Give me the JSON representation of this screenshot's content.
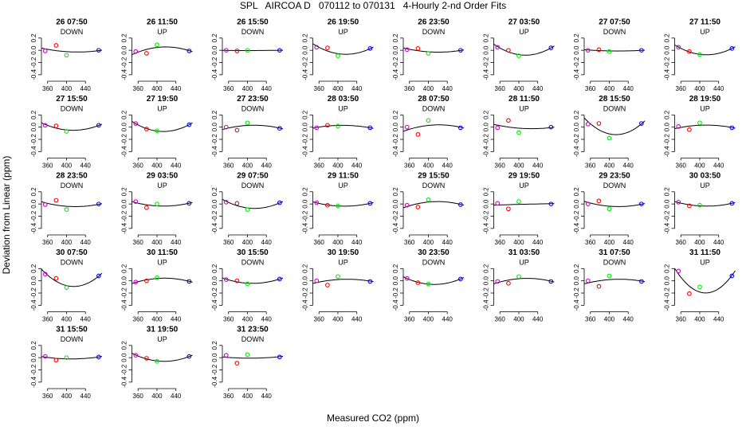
{
  "title": "SPL   AIRCOA D   070112 to 070131   4-Hourly 2-nd Order Fits",
  "xlabel": "Measured CO2 (ppm)",
  "ylabel": "Deviation from Linear (ppm)",
  "colors": {
    "point_low": "#cc00cc",
    "point_mid": "#ff0000",
    "point_ref": "#00ee00",
    "point_high": "#0000ff",
    "curve": "#000000"
  },
  "chart_data": {
    "type": "scatter",
    "layout": "small-multiples grid, 8 columns",
    "x_ticks": [
      360,
      400,
      440
    ],
    "x_tick_labels": [
      "360",
      "400",
      "440"
    ],
    "y_ticks": [
      -0.4,
      -0.2,
      0.0,
      0.2
    ],
    "y_tick_labels": [
      "-0.4",
      "-0.2",
      "0.0",
      "0.2"
    ],
    "xlim": [
      347,
      475
    ],
    "ylim": [
      -0.48,
      0.38
    ],
    "standards_x": [
      355,
      378,
      400,
      468
    ],
    "panels": [
      {
        "title": "26 07:50",
        "direction": "DOWN",
        "y": [
          -0.01,
          0.08,
          -0.08,
          0.0
        ]
      },
      {
        "title": "26 11:50",
        "direction": "UP",
        "y": [
          -0.02,
          -0.05,
          0.09,
          -0.01
        ]
      },
      {
        "title": "26 15:50",
        "direction": "DOWN",
        "y": [
          0.0,
          -0.01,
          0.0,
          0.0
        ]
      },
      {
        "title": "26 19:50",
        "direction": "UP",
        "y": [
          0.05,
          0.04,
          -0.09,
          0.03
        ]
      },
      {
        "title": "26 23:50",
        "direction": "DOWN",
        "y": [
          0.01,
          0.03,
          -0.05,
          0.0
        ]
      },
      {
        "title": "27 03:50",
        "direction": "UP",
        "y": [
          0.05,
          0.0,
          -0.09,
          0.04
        ]
      },
      {
        "title": "27 07:50",
        "direction": "DOWN",
        "y": [
          0.0,
          0.01,
          -0.02,
          0.0
        ]
      },
      {
        "title": "27 11:50",
        "direction": "UP",
        "y": [
          0.05,
          -0.02,
          -0.07,
          0.03
        ]
      },
      {
        "title": "27 15:50",
        "direction": "DOWN",
        "y": [
          0.03,
          0.02,
          -0.07,
          0.03
        ]
      },
      {
        "title": "27 19:50",
        "direction": "UP",
        "y": [
          0.06,
          -0.03,
          -0.06,
          0.04
        ]
      },
      {
        "title": "27 23:50",
        "direction": "DOWN",
        "y": [
          0.0,
          -0.05,
          0.07,
          -0.02
        ]
      },
      {
        "title": "28 03:50",
        "direction": "UP",
        "y": [
          -0.01,
          0.03,
          0.02,
          -0.01
        ]
      },
      {
        "title": "28 07:50",
        "direction": "DOWN",
        "y": [
          0.0,
          -0.12,
          0.11,
          -0.01
        ]
      },
      {
        "title": "28 11:50",
        "direction": "UP",
        "y": [
          -0.01,
          0.11,
          -0.09,
          0.0
        ]
      },
      {
        "title": "28 15:50",
        "direction": "DOWN",
        "y": [
          0.05,
          0.06,
          -0.18,
          0.06
        ]
      },
      {
        "title": "28 19:50",
        "direction": "UP",
        "y": [
          0.01,
          -0.04,
          0.07,
          -0.01
        ]
      },
      {
        "title": "28 23:50",
        "direction": "DOWN",
        "y": [
          -0.01,
          0.06,
          -0.09,
          0.0
        ]
      },
      {
        "title": "29 03:50",
        "direction": "UP",
        "y": [
          0.04,
          -0.06,
          0.0,
          0.01
        ]
      },
      {
        "title": "29 07:50",
        "direction": "DOWN",
        "y": [
          0.03,
          0.01,
          -0.09,
          0.02
        ]
      },
      {
        "title": "29 11:50",
        "direction": "UP",
        "y": [
          0.02,
          -0.02,
          -0.03,
          0.01
        ]
      },
      {
        "title": "29 15:50",
        "direction": "DOWN",
        "y": [
          -0.02,
          -0.05,
          0.07,
          -0.01
        ]
      },
      {
        "title": "29 19:50",
        "direction": "UP",
        "y": [
          0.01,
          -0.08,
          0.04,
          0.0
        ]
      },
      {
        "title": "29 23:50",
        "direction": "DOWN",
        "y": [
          0.0,
          0.05,
          -0.08,
          0.0
        ]
      },
      {
        "title": "30 03:50",
        "direction": "UP",
        "y": [
          0.03,
          -0.03,
          -0.02,
          0.01
        ]
      },
      {
        "title": "30 07:50",
        "direction": "DOWN",
        "y": [
          0.11,
          0.04,
          -0.11,
          0.08
        ]
      },
      {
        "title": "30 11:50",
        "direction": "UP",
        "y": [
          -0.02,
          0.0,
          0.05,
          -0.01
        ]
      },
      {
        "title": "30 15:50",
        "direction": "DOWN",
        "y": [
          0.02,
          0.0,
          -0.05,
          0.03
        ]
      },
      {
        "title": "30 19:50",
        "direction": "UP",
        "y": [
          0.0,
          -0.07,
          0.07,
          -0.01
        ]
      },
      {
        "title": "30 23:50",
        "direction": "DOWN",
        "y": [
          0.04,
          -0.03,
          -0.05,
          0.03
        ]
      },
      {
        "title": "31 03:50",
        "direction": "UP",
        "y": [
          -0.01,
          -0.04,
          0.07,
          -0.01
        ]
      },
      {
        "title": "31 07:50",
        "direction": "DOWN",
        "y": [
          0.0,
          -0.09,
          0.08,
          -0.01
        ]
      },
      {
        "title": "31 11:50",
        "direction": "UP",
        "y": [
          0.16,
          -0.21,
          -0.1,
          0.08
        ]
      },
      {
        "title": "31 15:50",
        "direction": "DOWN",
        "y": [
          0.02,
          -0.04,
          0.0,
          0.01
        ]
      },
      {
        "title": "31 19:50",
        "direction": "UP",
        "y": [
          0.04,
          -0.01,
          -0.06,
          0.02
        ]
      },
      {
        "title": "31 23:50",
        "direction": "DOWN",
        "y": [
          0.04,
          -0.09,
          0.05,
          0.01
        ]
      }
    ]
  }
}
